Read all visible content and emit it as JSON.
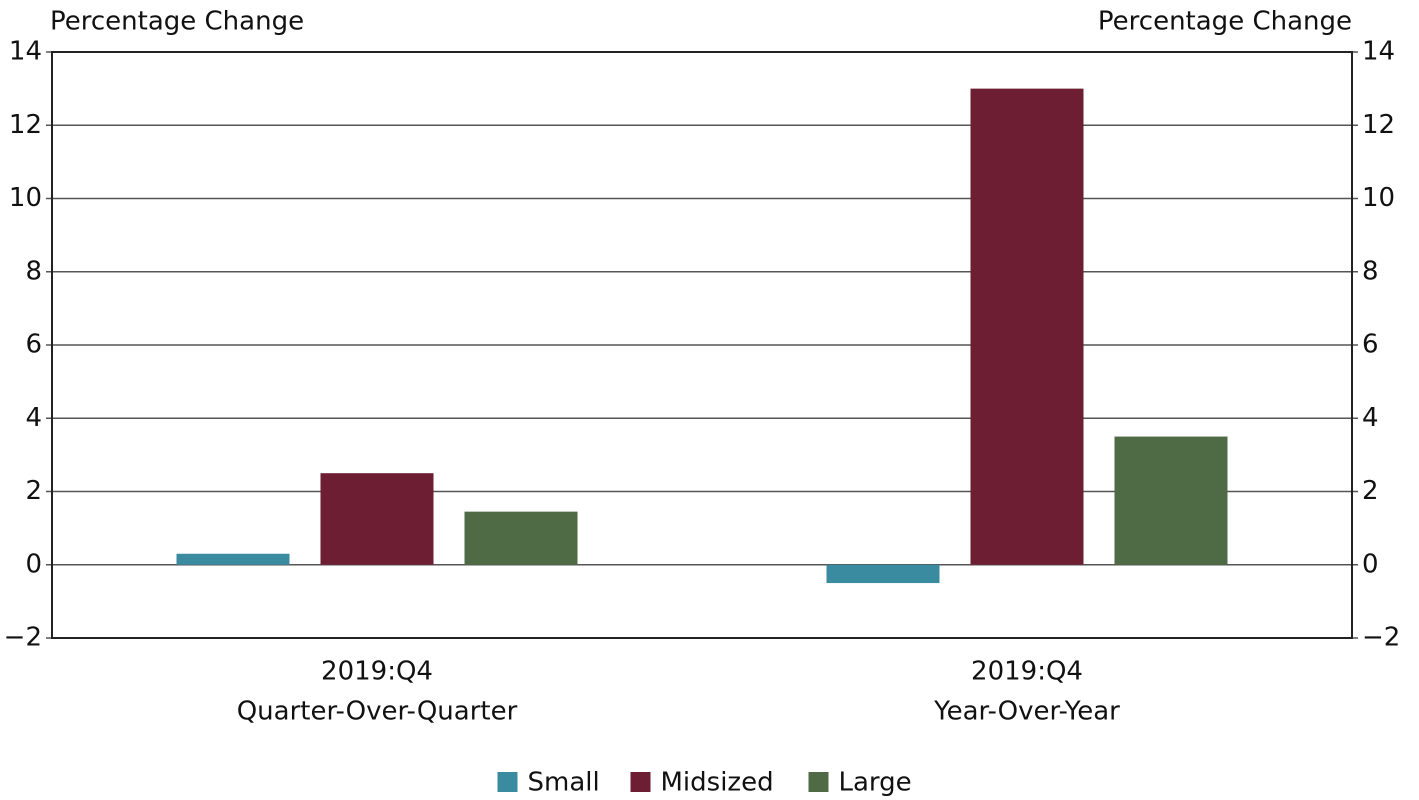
{
  "chart_data": {
    "type": "bar",
    "y_label": "Percentage Change",
    "y2_label": "Percentage Change",
    "categories": [
      [
        "2019:Q4",
        "Quarter-Over-Quarter"
      ],
      [
        "2019:Q4",
        "Year-Over-Year"
      ]
    ],
    "series": [
      {
        "name": "Small",
        "color": "#3a8ba0",
        "values": [
          0.3,
          -0.5
        ]
      },
      {
        "name": "Midsized",
        "color": "#6e1e33",
        "values": [
          2.5,
          13.0
        ]
      },
      {
        "name": "Large",
        "color": "#4e6b45",
        "values": [
          1.45,
          3.5
        ]
      }
    ],
    "ylim": [
      -2,
      14
    ],
    "yticks": [
      {
        "value": -2,
        "label": "−2"
      },
      0,
      2,
      4,
      6,
      8,
      10,
      12,
      14
    ],
    "y2lim": [
      -2,
      14
    ],
    "y2ticks": [
      {
        "value": -2,
        "label": "−2"
      },
      0,
      2,
      4,
      6,
      8,
      10,
      12,
      14
    ],
    "grid": true,
    "legend": "bottom"
  }
}
